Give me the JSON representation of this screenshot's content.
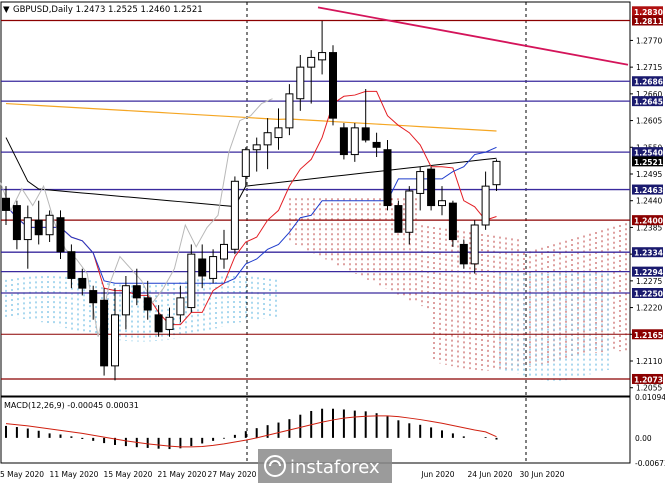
{
  "header": {
    "triangle": "▼",
    "symbol_text": "GBPUSD,Daily  1.2473 1.2525 1.2460 1.2521"
  },
  "indicator_header": "MACD(12,26,9) -0.00045 0.00031",
  "watermark": "instaforex",
  "price_axis": {
    "ticks": [
      "1.2770",
      "1.2715",
      "1.2660",
      "1.2605",
      "1.2550",
      "1.2495",
      "1.2440",
      "1.2385",
      "1.2330",
      "1.2275",
      "1.2220",
      "1.2165",
      "1.2110",
      "1.2055"
    ]
  },
  "level_labels": [
    {
      "text": "1.2830",
      "value": 1.283,
      "color": "#b01010"
    },
    {
      "text": "1.2811",
      "value": 1.2811,
      "color": "#8b0000"
    },
    {
      "text": "1.2686",
      "value": 1.2686,
      "color": "#1a1a6e"
    },
    {
      "text": "1.2645",
      "value": 1.2645,
      "color": "#1a1a6e"
    },
    {
      "text": "1.2540",
      "value": 1.254,
      "color": "#1a1a6e"
    },
    {
      "text": "1.2521",
      "value": 1.2521,
      "color": "#000000"
    },
    {
      "text": "1.2463",
      "value": 1.2463,
      "color": "#1a1a6e"
    },
    {
      "text": "1.2400",
      "value": 1.24,
      "color": "#8b0000"
    },
    {
      "text": "1.2334",
      "value": 1.2334,
      "color": "#1a1a6e"
    },
    {
      "text": "1.2294",
      "value": 1.2294,
      "color": "#1a1a6e"
    },
    {
      "text": "1.2250",
      "value": 1.225,
      "color": "#1a1a6e"
    },
    {
      "text": "1.2165",
      "value": 1.2165,
      "color": "#8b0000"
    },
    {
      "text": "1.2073",
      "value": 1.2073,
      "color": "#8b0000"
    }
  ],
  "macd_axis": {
    "ticks": [
      "0.01094",
      "0.00",
      "-0.00673"
    ]
  },
  "date_axis": {
    "labels": [
      "5 May 2020",
      "11 May 2020",
      "15 May 2020",
      "21 May 2020",
      "27 May 2020",
      "Jun 2020",
      "24 Jun 2020",
      "30 Jun 2020"
    ]
  },
  "chart_data": {
    "type": "candlestick",
    "symbol": "GBPUSD",
    "timeframe": "Daily",
    "y_range": [
      1.204,
      1.2845
    ],
    "candles": [
      {
        "o": 1.2445,
        "h": 1.247,
        "l": 1.239,
        "c": 1.242
      },
      {
        "o": 1.243,
        "h": 1.244,
        "l": 1.234,
        "c": 1.236
      },
      {
        "o": 1.236,
        "h": 1.243,
        "l": 1.23,
        "c": 1.2405
      },
      {
        "o": 1.24,
        "h": 1.244,
        "l": 1.235,
        "c": 1.237
      },
      {
        "o": 1.237,
        "h": 1.242,
        "l": 1.2355,
        "c": 1.241
      },
      {
        "o": 1.2405,
        "h": 1.242,
        "l": 1.232,
        "c": 1.2335
      },
      {
        "o": 1.2335,
        "h": 1.235,
        "l": 1.226,
        "c": 1.228
      },
      {
        "o": 1.228,
        "h": 1.23,
        "l": 1.2245,
        "c": 1.226
      },
      {
        "o": 1.2255,
        "h": 1.2265,
        "l": 1.2195,
        "c": 1.223
      },
      {
        "o": 1.2235,
        "h": 1.226,
        "l": 1.208,
        "c": 1.21
      },
      {
        "o": 1.21,
        "h": 1.226,
        "l": 1.207,
        "c": 1.2205
      },
      {
        "o": 1.2205,
        "h": 1.2285,
        "l": 1.2175,
        "c": 1.2265
      },
      {
        "o": 1.2265,
        "h": 1.23,
        "l": 1.2225,
        "c": 1.224
      },
      {
        "o": 1.224,
        "h": 1.2275,
        "l": 1.2195,
        "c": 1.2215
      },
      {
        "o": 1.2205,
        "h": 1.2225,
        "l": 1.216,
        "c": 1.217
      },
      {
        "o": 1.2175,
        "h": 1.222,
        "l": 1.216,
        "c": 1.22
      },
      {
        "o": 1.2205,
        "h": 1.2265,
        "l": 1.219,
        "c": 1.224
      },
      {
        "o": 1.222,
        "h": 1.235,
        "l": 1.221,
        "c": 1.233
      },
      {
        "o": 1.232,
        "h": 1.235,
        "l": 1.226,
        "c": 1.2285
      },
      {
        "o": 1.228,
        "h": 1.234,
        "l": 1.227,
        "c": 1.2325
      },
      {
        "o": 1.232,
        "h": 1.238,
        "l": 1.23,
        "c": 1.235
      },
      {
        "o": 1.234,
        "h": 1.249,
        "l": 1.233,
        "c": 1.248
      },
      {
        "o": 1.249,
        "h": 1.255,
        "l": 1.247,
        "c": 1.2545
      },
      {
        "o": 1.2545,
        "h": 1.257,
        "l": 1.25,
        "c": 1.2555
      },
      {
        "o": 1.2555,
        "h": 1.261,
        "l": 1.2505,
        "c": 1.258
      },
      {
        "o": 1.257,
        "h": 1.263,
        "l": 1.2545,
        "c": 1.259
      },
      {
        "o": 1.259,
        "h": 1.268,
        "l": 1.2575,
        "c": 1.266
      },
      {
        "o": 1.265,
        "h": 1.274,
        "l": 1.2625,
        "c": 1.2715
      },
      {
        "o": 1.2715,
        "h": 1.275,
        "l": 1.264,
        "c": 1.2735
      },
      {
        "o": 1.273,
        "h": 1.281,
        "l": 1.27,
        "c": 1.2745
      },
      {
        "o": 1.2745,
        "h": 1.276,
        "l": 1.2595,
        "c": 1.261
      },
      {
        "o": 1.259,
        "h": 1.26,
        "l": 1.2525,
        "c": 1.2535
      },
      {
        "o": 1.2535,
        "h": 1.26,
        "l": 1.252,
        "c": 1.259
      },
      {
        "o": 1.259,
        "h": 1.267,
        "l": 1.256,
        "c": 1.2565
      },
      {
        "o": 1.256,
        "h": 1.258,
        "l": 1.253,
        "c": 1.255
      },
      {
        "o": 1.2545,
        "h": 1.2565,
        "l": 1.242,
        "c": 1.243
      },
      {
        "o": 1.243,
        "h": 1.244,
        "l": 1.238,
        "c": 1.2375
      },
      {
        "o": 1.2375,
        "h": 1.247,
        "l": 1.235,
        "c": 1.246
      },
      {
        "o": 1.2455,
        "h": 1.251,
        "l": 1.242,
        "c": 1.25
      },
      {
        "o": 1.2505,
        "h": 1.251,
        "l": 1.242,
        "c": 1.243
      },
      {
        "o": 1.243,
        "h": 1.247,
        "l": 1.241,
        "c": 1.244
      },
      {
        "o": 1.2435,
        "h": 1.244,
        "l": 1.2345,
        "c": 1.236
      },
      {
        "o": 1.235,
        "h": 1.236,
        "l": 1.23,
        "c": 1.231
      },
      {
        "o": 1.231,
        "h": 1.24,
        "l": 1.229,
        "c": 1.239
      },
      {
        "o": 1.239,
        "h": 1.25,
        "l": 1.238,
        "c": 1.247
      },
      {
        "o": 1.2473,
        "h": 1.2525,
        "l": 1.246,
        "c": 1.2521
      }
    ],
    "macd_histogram": [
      0.0032,
      0.0029,
      0.0025,
      0.0019,
      0.0012,
      0.0009,
      0.0004,
      -0.0003,
      -0.0008,
      -0.0014,
      -0.0019,
      -0.0022,
      -0.0025,
      -0.0027,
      -0.0029,
      -0.003,
      -0.0028,
      -0.0022,
      -0.0015,
      -0.0008,
      -0.0002,
      0.0008,
      0.0018,
      0.0026,
      0.0034,
      0.0041,
      0.005,
      0.0062,
      0.0072,
      0.0078,
      0.0078,
      0.0076,
      0.0073,
      0.0071,
      0.0066,
      0.0058,
      0.0047,
      0.0039,
      0.0035,
      0.0028,
      0.002,
      0.0012,
      0.0004,
      0.0,
      0.0002,
      -0.00045
    ],
    "macd_signal": [
      0.0038,
      0.0035,
      0.0032,
      0.0028,
      0.0024,
      0.002,
      0.0016,
      0.0012,
      0.0007,
      0.0002,
      -0.0003,
      -0.0008,
      -0.0012,
      -0.0016,
      -0.0019,
      -0.0022,
      -0.0024,
      -0.0024,
      -0.0023,
      -0.002,
      -0.0016,
      -0.0011,
      -0.0006,
      0.0,
      0.0007,
      0.0014,
      0.0021,
      0.0028,
      0.0035,
      0.0042,
      0.0048,
      0.0053,
      0.0056,
      0.0058,
      0.0059,
      0.0059,
      0.0057,
      0.0053,
      0.0049,
      0.0044,
      0.0039,
      0.0033,
      0.0027,
      0.0021,
      0.0016,
      0.00031
    ],
    "macd_range": [
      -0.00673,
      0.01094
    ],
    "series_colors": {
      "bull_body": "#ffffff",
      "bear_body": "#000000",
      "sma_orange": "#f5a623",
      "sma_black": "#000000",
      "tenkan_red": "#e31e24",
      "kijun_blue": "#1e3ccc",
      "chikou_gray": "#b8b8b8",
      "cloud_red": "#b22222",
      "cloud_blue": "#2aa0d8",
      "trendline": "#d4145a",
      "macd_signal": "#d02010"
    }
  }
}
